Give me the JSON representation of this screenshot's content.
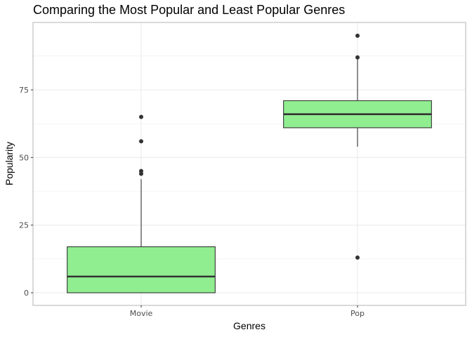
{
  "chart_data": {
    "type": "boxplot",
    "title": "Comparing the Most Popular and Least Popular Genres",
    "xlabel": "Genres",
    "ylabel": "Popularity",
    "categories": [
      "Movie",
      "Pop"
    ],
    "ylim": [
      -4,
      99
    ],
    "yticks": [
      0,
      25,
      50,
      75
    ],
    "grid": true,
    "colors": {
      "box_fill": "#90EE90",
      "box_stroke": "#333333",
      "outlier": "#333333",
      "grid": "#ebebeb",
      "panel_border": "#b3b3b3"
    },
    "boxes": [
      {
        "category": "Movie",
        "lower_whisker": 0,
        "q1": 0,
        "median": 6,
        "q3": 17,
        "upper_whisker": 42,
        "outliers": [
          44,
          45,
          56,
          65
        ]
      },
      {
        "category": "Pop",
        "lower_whisker": 54,
        "q1": 61,
        "median": 66,
        "q3": 71,
        "upper_whisker": 87,
        "outliers": [
          13,
          87,
          95
        ]
      }
    ]
  }
}
